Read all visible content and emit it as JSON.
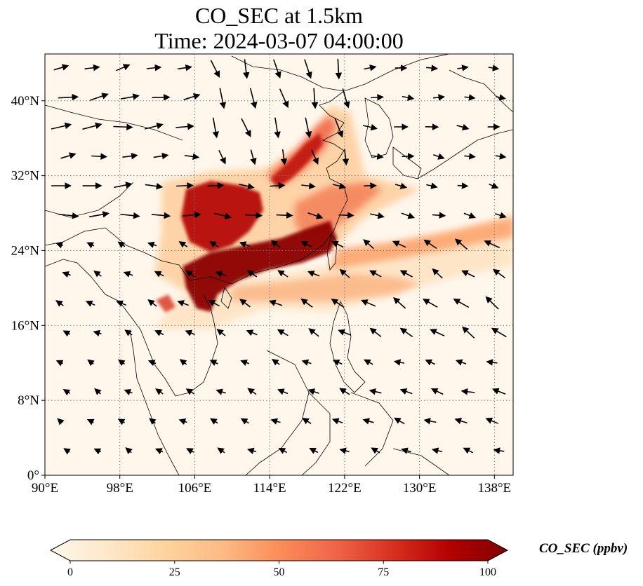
{
  "title": {
    "line1": "CO_SEC at 1.5km",
    "line2": "Time: 2024-03-07 04:00:00"
  },
  "map": {
    "lon_range": [
      90,
      140
    ],
    "lat_range": [
      0,
      45
    ],
    "lon_ticks": [
      {
        "value": 90,
        "label": "90°E"
      },
      {
        "value": 98,
        "label": "98°E"
      },
      {
        "value": 106,
        "label": "106°E"
      },
      {
        "value": 114,
        "label": "114°E"
      },
      {
        "value": 122,
        "label": "122°E"
      },
      {
        "value": 130,
        "label": "130°E"
      },
      {
        "value": 138,
        "label": "138°E"
      }
    ],
    "lat_ticks": [
      {
        "value": 0,
        "label": "0°"
      },
      {
        "value": 8,
        "label": "8°N"
      },
      {
        "value": 16,
        "label": "16°N"
      },
      {
        "value": 24,
        "label": "24°N"
      },
      {
        "value": 32,
        "label": "32°N"
      },
      {
        "value": 40,
        "label": "40°N"
      }
    ],
    "gridlines": "dotted",
    "field": "CO_SEC",
    "vectors": "wind"
  },
  "colorbar": {
    "title": "CO_SEC (ppbv)",
    "min": 0,
    "max": 100,
    "extend": "both",
    "colormap": "OrRd",
    "colors": [
      "#fff7ec",
      "#fee8c8",
      "#fdd49e",
      "#fdbb84",
      "#fc8d59",
      "#ef6548",
      "#d7301f",
      "#b30000",
      "#7f0000"
    ],
    "ticks": [
      {
        "value": 0,
        "label": "0"
      },
      {
        "value": 25,
        "label": "25"
      },
      {
        "value": 50,
        "label": "50"
      },
      {
        "value": 75,
        "label": "75"
      },
      {
        "value": 100,
        "label": "100"
      }
    ]
  }
}
